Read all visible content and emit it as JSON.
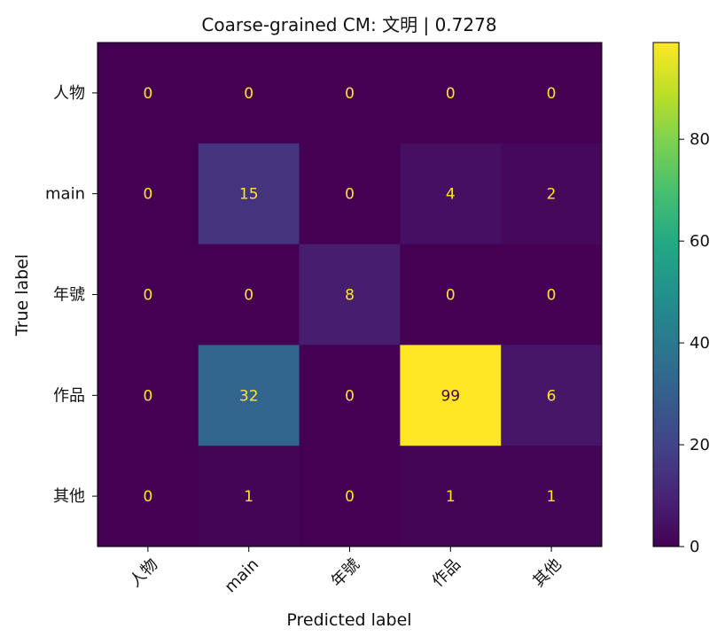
{
  "chart_data": {
    "type": "heatmap",
    "title": "Coarse-grained CM: 文明 | 0.7278",
    "xlabel": "Predicted label",
    "ylabel": "True label",
    "x_categories": [
      "人物",
      "main",
      "年號",
      "作品",
      "其他"
    ],
    "y_categories": [
      "人物",
      "main",
      "年號",
      "作品",
      "其他"
    ],
    "matrix": [
      [
        0,
        0,
        0,
        0,
        0
      ],
      [
        0,
        15,
        0,
        4,
        2
      ],
      [
        0,
        0,
        8,
        0,
        0
      ],
      [
        0,
        32,
        0,
        99,
        6
      ],
      [
        0,
        1,
        0,
        1,
        1
      ]
    ],
    "colormap": "viridis",
    "colorbar": {
      "range": [
        0,
        99
      ],
      "ticks": [
        0,
        20,
        40,
        60,
        80
      ]
    },
    "cell_text_colors": {
      "on_dark": "#fde725",
      "on_light": "#440154"
    }
  }
}
